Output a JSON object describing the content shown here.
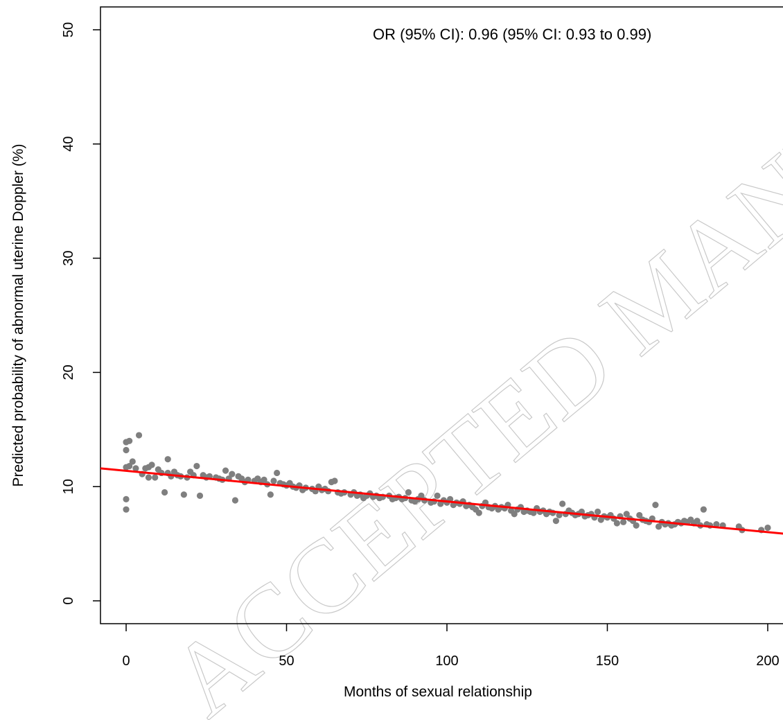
{
  "chart_data": {
    "type": "scatter",
    "title": "",
    "xlabel": "Months of sexual relationship",
    "ylabel": "Predicted probability of abnormal uterine Doppler (%)",
    "annotation": "OR (95% CI): 0.96 (95% CI: 0.93 to 0.99)",
    "watermark": "ACCEPTED MANUSCRIPT",
    "xlim": [
      -8,
      208
    ],
    "ylim": [
      -2,
      52
    ],
    "xticks": [
      0,
      50,
      100,
      150,
      200
    ],
    "yticks": [
      0,
      10,
      20,
      30,
      40,
      50
    ],
    "grid": false,
    "legend": "none",
    "point_color": "#7f7f7f",
    "line_color": "#ff0000",
    "fit_line": {
      "x": [
        -8,
        208
      ],
      "y": [
        11.6,
        5.8
      ]
    },
    "points": [
      [
        0,
        11.7
      ],
      [
        0,
        13.9
      ],
      [
        0,
        13.2
      ],
      [
        0,
        8.9
      ],
      [
        0,
        8.0
      ],
      [
        1,
        14.0
      ],
      [
        1,
        11.8
      ],
      [
        2,
        12.2
      ],
      [
        3,
        11.6
      ],
      [
        4,
        14.5
      ],
      [
        5,
        11.1
      ],
      [
        6,
        11.6
      ],
      [
        7,
        10.8
      ],
      [
        7,
        11.7
      ],
      [
        8,
        11.9
      ],
      [
        9,
        10.8
      ],
      [
        10,
        11.5
      ],
      [
        11,
        11.2
      ],
      [
        12,
        9.5
      ],
      [
        13,
        12.4
      ],
      [
        13,
        11.2
      ],
      [
        14,
        10.9
      ],
      [
        15,
        11.3
      ],
      [
        16,
        11.0
      ],
      [
        17,
        10.9
      ],
      [
        18,
        9.3
      ],
      [
        19,
        10.8
      ],
      [
        20,
        11.3
      ],
      [
        21,
        11.0
      ],
      [
        22,
        11.8
      ],
      [
        23,
        9.2
      ],
      [
        24,
        11.0
      ],
      [
        25,
        10.8
      ],
      [
        26,
        10.9
      ],
      [
        28,
        10.8
      ],
      [
        29,
        10.7
      ],
      [
        30,
        10.6
      ],
      [
        31,
        11.4
      ],
      [
        32,
        10.7
      ],
      [
        33,
        11.1
      ],
      [
        34,
        8.8
      ],
      [
        35,
        10.9
      ],
      [
        36,
        10.7
      ],
      [
        37,
        10.4
      ],
      [
        38,
        10.6
      ],
      [
        40,
        10.5
      ],
      [
        41,
        10.7
      ],
      [
        42,
        10.4
      ],
      [
        43,
        10.6
      ],
      [
        44,
        10.2
      ],
      [
        45,
        9.3
      ],
      [
        46,
        10.5
      ],
      [
        47,
        11.2
      ],
      [
        48,
        10.3
      ],
      [
        49,
        10.2
      ],
      [
        50,
        10.1
      ],
      [
        51,
        10.3
      ],
      [
        52,
        10.0
      ],
      [
        53,
        9.9
      ],
      [
        54,
        10.1
      ],
      [
        55,
        9.7
      ],
      [
        56,
        9.9
      ],
      [
        58,
        9.8
      ],
      [
        59,
        9.6
      ],
      [
        60,
        10.0
      ],
      [
        61,
        9.7
      ],
      [
        62,
        9.8
      ],
      [
        63,
        9.6
      ],
      [
        64,
        10.4
      ],
      [
        65,
        10.5
      ],
      [
        66,
        9.5
      ],
      [
        67,
        9.4
      ],
      [
        68,
        9.5
      ],
      [
        70,
        9.3
      ],
      [
        71,
        9.5
      ],
      [
        72,
        9.2
      ],
      [
        73,
        9.3
      ],
      [
        74,
        9.0
      ],
      [
        75,
        9.2
      ],
      [
        76,
        9.4
      ],
      [
        77,
        9.1
      ],
      [
        78,
        9.2
      ],
      [
        79,
        9.0
      ],
      [
        80,
        9.1
      ],
      [
        82,
        9.2
      ],
      [
        83,
        8.9
      ],
      [
        84,
        9.0
      ],
      [
        85,
        9.1
      ],
      [
        86,
        8.9
      ],
      [
        87,
        9.0
      ],
      [
        88,
        9.5
      ],
      [
        89,
        8.8
      ],
      [
        90,
        8.7
      ],
      [
        91,
        8.9
      ],
      [
        92,
        9.2
      ],
      [
        93,
        8.8
      ],
      [
        95,
        8.6
      ],
      [
        96,
        8.7
      ],
      [
        97,
        9.2
      ],
      [
        98,
        8.5
      ],
      [
        99,
        8.8
      ],
      [
        100,
        8.6
      ],
      [
        101,
        8.9
      ],
      [
        102,
        8.4
      ],
      [
        103,
        8.6
      ],
      [
        104,
        8.5
      ],
      [
        105,
        8.7
      ],
      [
        106,
        8.3
      ],
      [
        107,
        8.4
      ],
      [
        108,
        8.2
      ],
      [
        109,
        8.0
      ],
      [
        110,
        7.7
      ],
      [
        111,
        8.3
      ],
      [
        112,
        8.6
      ],
      [
        113,
        8.2
      ],
      [
        114,
        8.1
      ],
      [
        115,
        8.3
      ],
      [
        116,
        8.0
      ],
      [
        117,
        8.2
      ],
      [
        118,
        8.1
      ],
      [
        119,
        8.4
      ],
      [
        120,
        7.9
      ],
      [
        121,
        7.6
      ],
      [
        122,
        8.0
      ],
      [
        123,
        8.2
      ],
      [
        124,
        7.8
      ],
      [
        125,
        7.9
      ],
      [
        126,
        7.8
      ],
      [
        127,
        7.7
      ],
      [
        128,
        8.1
      ],
      [
        129,
        7.8
      ],
      [
        130,
        7.9
      ],
      [
        131,
        7.6
      ],
      [
        132,
        7.8
      ],
      [
        133,
        7.7
      ],
      [
        134,
        7.0
      ],
      [
        135,
        7.5
      ],
      [
        136,
        8.5
      ],
      [
        137,
        7.6
      ],
      [
        138,
        7.9
      ],
      [
        139,
        7.7
      ],
      [
        140,
        7.5
      ],
      [
        141,
        7.6
      ],
      [
        142,
        7.8
      ],
      [
        143,
        7.4
      ],
      [
        144,
        7.5
      ],
      [
        145,
        7.6
      ],
      [
        146,
        7.3
      ],
      [
        147,
        7.8
      ],
      [
        148,
        7.1
      ],
      [
        149,
        7.4
      ],
      [
        150,
        7.3
      ],
      [
        151,
        7.5
      ],
      [
        152,
        7.2
      ],
      [
        153,
        6.8
      ],
      [
        154,
        7.4
      ],
      [
        155,
        6.9
      ],
      [
        156,
        7.6
      ],
      [
        157,
        7.2
      ],
      [
        158,
        7.0
      ],
      [
        159,
        6.6
      ],
      [
        160,
        7.5
      ],
      [
        161,
        7.1
      ],
      [
        162,
        7.0
      ],
      [
        163,
        6.9
      ],
      [
        164,
        7.2
      ],
      [
        165,
        8.4
      ],
      [
        166,
        6.5
      ],
      [
        167,
        6.9
      ],
      [
        168,
        6.7
      ],
      [
        169,
        6.8
      ],
      [
        170,
        6.6
      ],
      [
        171,
        6.7
      ],
      [
        172,
        6.9
      ],
      [
        173,
        6.8
      ],
      [
        174,
        7.0
      ],
      [
        175,
        6.9
      ],
      [
        176,
        7.1
      ],
      [
        177,
        6.8
      ],
      [
        178,
        7.0
      ],
      [
        179,
        6.6
      ],
      [
        180,
        8.0
      ],
      [
        181,
        6.7
      ],
      [
        182,
        6.6
      ],
      [
        184,
        6.7
      ],
      [
        186,
        6.6
      ],
      [
        191,
        6.5
      ],
      [
        192,
        6.2
      ],
      [
        198,
        6.2
      ],
      [
        200,
        6.4
      ]
    ]
  }
}
